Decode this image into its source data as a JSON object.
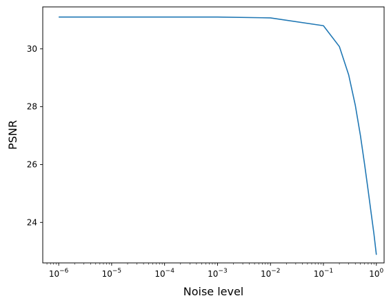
{
  "chart_data": {
    "type": "line",
    "title": "",
    "xlabel": "Noise level",
    "ylabel": "PSNR",
    "xscale": "log",
    "xlim": [
      5e-07,
      1.4
    ],
    "ylim": [
      22.6,
      31.45
    ],
    "grid": false,
    "legend": "none",
    "line_color": "#1f77b4",
    "x_ticks": [
      {
        "value": 1e-06,
        "base": "10",
        "exp": "−6"
      },
      {
        "value": 1e-05,
        "base": "10",
        "exp": "−5"
      },
      {
        "value": 0.0001,
        "base": "10",
        "exp": "−4"
      },
      {
        "value": 0.001,
        "base": "10",
        "exp": "−3"
      },
      {
        "value": 0.01,
        "base": "10",
        "exp": "−2"
      },
      {
        "value": 0.1,
        "base": "10",
        "exp": "−1"
      },
      {
        "value": 1,
        "base": "10",
        "exp": "0"
      }
    ],
    "y_ticks": [
      {
        "value": 24,
        "label": "24"
      },
      {
        "value": 26,
        "label": "26"
      },
      {
        "value": 28,
        "label": "28"
      },
      {
        "value": 30,
        "label": "30"
      }
    ],
    "series": [
      {
        "x": [
          1e-06,
          1e-05,
          0.0001,
          0.001,
          0.01,
          0.1,
          0.2,
          0.3,
          0.4,
          0.5,
          0.6,
          0.7,
          0.8,
          0.9,
          1.0
        ],
        "y": [
          31.1,
          31.1,
          31.1,
          31.1,
          31.07,
          30.8,
          30.08,
          29.1,
          28.05,
          27.0,
          26.0,
          25.1,
          24.3,
          23.6,
          22.88
        ]
      }
    ]
  }
}
